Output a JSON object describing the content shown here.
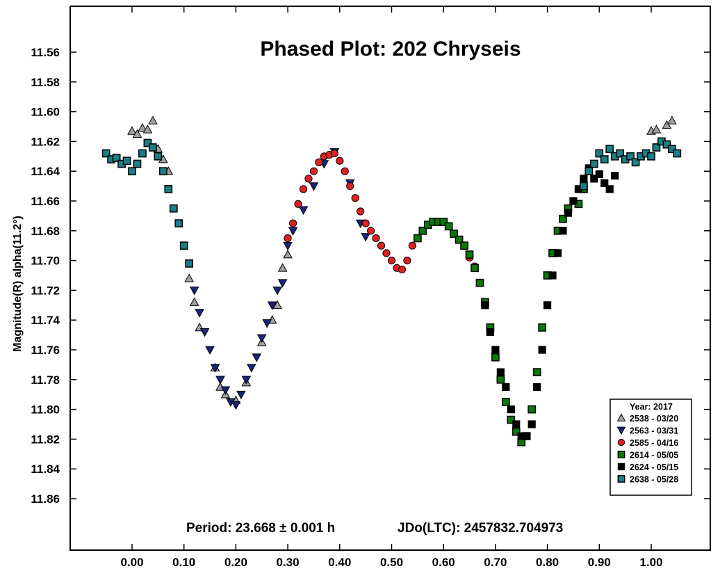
{
  "chart_data": {
    "type": "scatter",
    "title": "Phased Plot: 202 Chryseis",
    "xlabel": "",
    "ylabel": "Magnitude(R) alpha(11.2°)",
    "xlim": [
      -0.12,
      1.12
    ],
    "ylim": [
      11.88,
      11.52
    ],
    "y_inverted": true,
    "x_ticks": [
      "0.00",
      "0.10",
      "0.20",
      "0.30",
      "0.40",
      "0.50",
      "0.60",
      "0.70",
      "0.80",
      "0.90",
      "1.00"
    ],
    "y_ticks": [
      "11.56",
      "11.58",
      "11.60",
      "11.62",
      "11.64",
      "11.66",
      "11.68",
      "11.70",
      "11.72",
      "11.74",
      "11.76",
      "11.78",
      "11.80",
      "11.82",
      "11.84",
      "11.86"
    ],
    "annotations": {
      "period": "Period: 23.668 ± 0.001 h",
      "epoch": "JDo(LTC): 2457832.704973"
    },
    "legend": {
      "title": "Year: 2017",
      "position": "bottom-right"
    },
    "series": [
      {
        "name": "2538 - 03/20",
        "marker": "triangle-up",
        "color": "#a0a0a0",
        "points": [
          [
            0.0,
            11.613
          ],
          [
            0.01,
            11.615
          ],
          [
            0.02,
            11.611
          ],
          [
            0.03,
            11.612
          ],
          [
            0.04,
            11.606
          ],
          [
            0.05,
            11.625
          ],
          [
            0.06,
            11.632
          ],
          [
            0.07,
            11.64
          ],
          [
            0.11,
            11.712
          ],
          [
            0.12,
            11.728
          ],
          [
            0.13,
            11.745
          ],
          [
            0.16,
            11.772
          ],
          [
            0.17,
            11.785
          ],
          [
            0.18,
            11.79
          ],
          [
            0.2,
            11.794
          ],
          [
            0.22,
            11.782
          ],
          [
            0.25,
            11.755
          ],
          [
            0.27,
            11.74
          ],
          [
            0.28,
            11.73
          ],
          [
            0.29,
            11.705
          ],
          [
            0.3,
            11.696
          ],
          [
            1.0,
            11.613
          ],
          [
            1.01,
            11.612
          ],
          [
            1.03,
            11.609
          ],
          [
            1.04,
            11.606
          ]
        ]
      },
      {
        "name": "2563 - 03/31",
        "marker": "triangle-down",
        "color": "#1a237e",
        "points": [
          [
            0.12,
            11.72
          ],
          [
            0.13,
            11.735
          ],
          [
            0.14,
            11.748
          ],
          [
            0.15,
            11.76
          ],
          [
            0.16,
            11.772
          ],
          [
            0.17,
            11.78
          ],
          [
            0.18,
            11.787
          ],
          [
            0.19,
            11.795
          ],
          [
            0.2,
            11.797
          ],
          [
            0.21,
            11.79
          ],
          [
            0.22,
            11.78
          ],
          [
            0.23,
            11.772
          ],
          [
            0.24,
            11.765
          ],
          [
            0.25,
            11.752
          ],
          [
            0.26,
            11.742
          ],
          [
            0.27,
            11.73
          ],
          [
            0.28,
            11.72
          ],
          [
            0.29,
            11.715
          ],
          [
            0.3,
            11.69
          ],
          [
            0.31,
            11.68
          ],
          [
            0.33,
            11.666
          ],
          [
            0.35,
            11.65
          ],
          [
            0.37,
            11.635
          ],
          [
            0.39,
            11.627
          ],
          [
            0.42,
            11.648
          ],
          [
            0.44,
            11.675
          ],
          [
            0.45,
            11.684
          ]
        ]
      },
      {
        "name": "2585 - 04/16",
        "marker": "circle",
        "color": "#e02020",
        "points": [
          [
            0.3,
            11.685
          ],
          [
            0.31,
            11.675
          ],
          [
            0.32,
            11.662
          ],
          [
            0.33,
            11.652
          ],
          [
            0.34,
            11.645
          ],
          [
            0.35,
            11.64
          ],
          [
            0.36,
            11.634
          ],
          [
            0.37,
            11.63
          ],
          [
            0.38,
            11.629
          ],
          [
            0.39,
            11.628
          ],
          [
            0.4,
            11.633
          ],
          [
            0.41,
            11.64
          ],
          [
            0.42,
            11.65
          ],
          [
            0.43,
            11.658
          ],
          [
            0.44,
            11.667
          ],
          [
            0.45,
            11.675
          ],
          [
            0.46,
            11.68
          ],
          [
            0.47,
            11.685
          ],
          [
            0.48,
            11.69
          ],
          [
            0.49,
            11.695
          ],
          [
            0.5,
            11.7
          ],
          [
            0.51,
            11.705
          ],
          [
            0.52,
            11.706
          ],
          [
            0.53,
            11.7
          ],
          [
            0.54,
            11.69
          ],
          [
            0.65,
            11.698
          ],
          [
            0.66,
            11.704
          ]
        ]
      },
      {
        "name": "2614 - 05/05",
        "marker": "square",
        "color": "#0a7a0a",
        "points": [
          [
            0.55,
            11.685
          ],
          [
            0.56,
            11.68
          ],
          [
            0.57,
            11.676
          ],
          [
            0.58,
            11.674
          ],
          [
            0.59,
            11.674
          ],
          [
            0.6,
            11.674
          ],
          [
            0.61,
            11.677
          ],
          [
            0.62,
            11.682
          ],
          [
            0.63,
            11.686
          ],
          [
            0.64,
            11.69
          ],
          [
            0.65,
            11.696
          ],
          [
            0.66,
            11.705
          ],
          [
            0.67,
            11.715
          ],
          [
            0.68,
            11.728
          ],
          [
            0.69,
            11.745
          ],
          [
            0.7,
            11.765
          ],
          [
            0.71,
            11.78
          ],
          [
            0.72,
            11.795
          ],
          [
            0.73,
            11.807
          ],
          [
            0.74,
            11.815
          ],
          [
            0.75,
            11.822
          ],
          [
            0.76,
            11.818
          ],
          [
            0.77,
            11.8
          ],
          [
            0.78,
            11.775
          ],
          [
            0.79,
            11.745
          ],
          [
            0.8,
            11.71
          ],
          [
            0.81,
            11.695
          ],
          [
            0.82,
            11.68
          ],
          [
            0.83,
            11.672
          ],
          [
            0.84,
            11.665
          ],
          [
            0.86,
            11.662
          ],
          [
            0.87,
            11.652
          ]
        ]
      },
      {
        "name": "2624 - 05/15",
        "marker": "square",
        "color": "#000000",
        "points": [
          [
            0.68,
            11.73
          ],
          [
            0.69,
            11.748
          ],
          [
            0.7,
            11.76
          ],
          [
            0.71,
            11.775
          ],
          [
            0.72,
            11.785
          ],
          [
            0.73,
            11.8
          ],
          [
            0.74,
            11.81
          ],
          [
            0.75,
            11.818
          ],
          [
            0.76,
            11.818
          ],
          [
            0.77,
            11.81
          ],
          [
            0.78,
            11.785
          ],
          [
            0.79,
            11.76
          ],
          [
            0.8,
            11.73
          ],
          [
            0.81,
            11.71
          ],
          [
            0.82,
            11.695
          ],
          [
            0.83,
            11.68
          ],
          [
            0.84,
            11.668
          ],
          [
            0.85,
            11.66
          ],
          [
            0.86,
            11.652
          ],
          [
            0.87,
            11.645
          ],
          [
            0.88,
            11.638
          ],
          [
            0.89,
            11.645
          ],
          [
            0.9,
            11.642
          ],
          [
            0.91,
            11.648
          ],
          [
            0.92,
            11.652
          ],
          [
            0.93,
            11.643
          ]
        ]
      },
      {
        "name": "2638 - 05/28",
        "marker": "square",
        "color": "#1a7f86",
        "points": [
          [
            -0.05,
            11.628
          ],
          [
            -0.04,
            11.632
          ],
          [
            -0.03,
            11.631
          ],
          [
            -0.02,
            11.635
          ],
          [
            -0.01,
            11.633
          ],
          [
            0.0,
            11.64
          ],
          [
            0.01,
            11.635
          ],
          [
            0.02,
            11.628
          ],
          [
            0.03,
            11.621
          ],
          [
            0.04,
            11.624
          ],
          [
            0.05,
            11.63
          ],
          [
            0.06,
            11.64
          ],
          [
            0.07,
            11.652
          ],
          [
            0.08,
            11.665
          ],
          [
            0.09,
            11.675
          ],
          [
            0.1,
            11.69
          ],
          [
            0.11,
            11.702
          ],
          [
            0.87,
            11.65
          ],
          [
            0.88,
            11.64
          ],
          [
            0.89,
            11.635
          ],
          [
            0.9,
            11.628
          ],
          [
            0.91,
            11.632
          ],
          [
            0.92,
            11.625
          ],
          [
            0.93,
            11.63
          ],
          [
            0.94,
            11.628
          ],
          [
            0.95,
            11.632
          ],
          [
            0.96,
            11.63
          ],
          [
            0.97,
            11.634
          ],
          [
            0.98,
            11.63
          ],
          [
            0.99,
            11.628
          ],
          [
            1.0,
            11.63
          ],
          [
            1.01,
            11.624
          ],
          [
            1.02,
            11.62
          ],
          [
            1.03,
            11.622
          ],
          [
            1.04,
            11.625
          ],
          [
            1.05,
            11.628
          ]
        ]
      }
    ]
  }
}
